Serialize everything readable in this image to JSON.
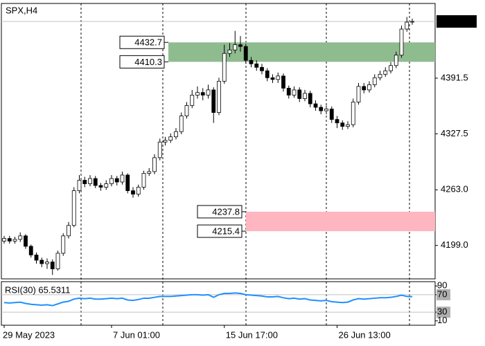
{
  "chart_data": {
    "type": "candlestick",
    "title": "SPX,H4",
    "categories": [
      "29 May 2023",
      null,
      null,
      null,
      null,
      null,
      null,
      null,
      null,
      null,
      null,
      null,
      null,
      null,
      null,
      null,
      null,
      null,
      null,
      null,
      "7 Jun 01:00",
      null,
      null,
      null,
      null,
      null,
      null,
      null,
      null,
      null,
      null,
      null,
      null,
      null,
      null,
      null,
      null,
      null,
      null,
      null,
      null,
      "15 Jun 17:00",
      null,
      null,
      null,
      null,
      null,
      null,
      null,
      null,
      null,
      null,
      null,
      null,
      null,
      null,
      null,
      null,
      null,
      null,
      null,
      null,
      "26 Jun 13:00",
      null,
      null,
      null,
      null,
      null,
      null,
      null,
      null,
      null,
      null,
      null,
      null,
      null,
      null
    ],
    "open": [
      4204,
      4207,
      4204,
      4206,
      4210,
      4198,
      4188,
      4182,
      4178,
      4180,
      4172,
      4190,
      4210,
      4222,
      4262,
      4274,
      4270,
      4276,
      4268,
      4266,
      4270,
      4276,
      4272,
      4280,
      4262,
      4258,
      4266,
      4282,
      4284,
      4300,
      4318,
      4320,
      4324,
      4330,
      4348,
      4360,
      4372,
      4375,
      4372,
      4378,
      4352,
      4388,
      4420,
      4424,
      4430,
      4428,
      4412,
      4408,
      4404,
      4400,
      4392,
      4390,
      4394,
      4380,
      4372,
      4378,
      4368,
      4374,
      4362,
      4358,
      4354,
      4356,
      4344,
      4340,
      4336,
      4338,
      4364,
      4382,
      4378,
      4384,
      4392,
      4396,
      4400,
      4406,
      4418,
      4448,
      4456
    ],
    "high": [
      4210,
      4210,
      4209,
      4214,
      4212,
      4200,
      4191,
      4185,
      4184,
      4183,
      4193,
      4213,
      4226,
      4266,
      4280,
      4278,
      4280,
      4279,
      4271,
      4274,
      4280,
      4279,
      4284,
      4282,
      4266,
      4269,
      4285,
      4288,
      4304,
      4322,
      4324,
      4328,
      4334,
      4352,
      4364,
      4378,
      4382,
      4380,
      4384,
      4381,
      4392,
      4430,
      4432,
      4446,
      4440,
      4431,
      4416,
      4412,
      4408,
      4403,
      4396,
      4398,
      4397,
      4383,
      4382,
      4381,
      4378,
      4377,
      4366,
      4361,
      4360,
      4359,
      4348,
      4343,
      4342,
      4368,
      4386,
      4386,
      4388,
      4396,
      4400,
      4404,
      4410,
      4422,
      4452,
      4462,
      4460
    ],
    "low": [
      4201,
      4201,
      4201,
      4203,
      4195,
      4185,
      4178,
      4174,
      4172,
      4165,
      4170,
      4187,
      4207,
      4220,
      4259,
      4266,
      4267,
      4265,
      4262,
      4263,
      4267,
      4268,
      4269,
      4259,
      4254,
      4255,
      4263,
      4279,
      4281,
      4297,
      4314,
      4317,
      4321,
      4327,
      4345,
      4357,
      4368,
      4366,
      4368,
      4340,
      4349,
      4385,
      4416,
      4420,
      4422,
      4408,
      4404,
      4400,
      4396,
      4388,
      4386,
      4386,
      4376,
      4368,
      4369,
      4364,
      4365,
      4358,
      4354,
      4350,
      4350,
      4340,
      4334,
      4332,
      4333,
      4335,
      4361,
      4374,
      4375,
      4381,
      4389,
      4393,
      4397,
      4403,
      4415,
      4445,
      4453
    ],
    "close": [
      4207,
      4204,
      4206,
      4210,
      4198,
      4188,
      4182,
      4178,
      4180,
      4172,
      4190,
      4210,
      4222,
      4262,
      4274,
      4270,
      4276,
      4268,
      4266,
      4270,
      4276,
      4272,
      4280,
      4262,
      4258,
      4266,
      4282,
      4284,
      4300,
      4318,
      4320,
      4324,
      4330,
      4348,
      4360,
      4372,
      4375,
      4372,
      4378,
      4352,
      4388,
      4420,
      4424,
      4430,
      4428,
      4412,
      4408,
      4404,
      4400,
      4392,
      4390,
      4394,
      4380,
      4372,
      4378,
      4368,
      4374,
      4362,
      4358,
      4354,
      4356,
      4344,
      4340,
      4336,
      4338,
      4364,
      4382,
      4378,
      4384,
      4392,
      4396,
      4400,
      4406,
      4418,
      4448,
      4456,
      4456.8
    ],
    "ylim": [
      4160.5,
      4477.5
    ],
    "yticks": [
      {
        "value": 4199,
        "label": "4199.0"
      },
      {
        "value": 4263,
        "label": "4263.0"
      },
      4327.5,
      4391.5
    ],
    "current_price": 4456.8,
    "zones": [
      {
        "high": 4432.7,
        "low": 4410.3,
        "color": "#8fbc8f"
      },
      {
        "high": 4237.8,
        "low": 4215.4,
        "color": "#ffb6c1"
      }
    ],
    "rsi": {
      "title": "RSI(30) 65.5311",
      "color": "#1e90ff",
      "ylim": [
        0,
        100
      ],
      "yticks": [
        90,
        70,
        30,
        10
      ],
      "levels": [
        70,
        30
      ],
      "values": [
        52,
        51,
        52,
        53,
        50,
        48,
        47,
        46,
        47,
        45,
        49,
        53,
        55,
        60,
        62,
        61,
        62,
        60,
        60,
        61,
        62,
        61,
        62,
        58,
        57,
        59,
        62,
        62,
        64,
        66,
        66,
        66,
        67,
        68,
        69,
        70,
        70,
        69,
        70,
        64,
        70,
        73,
        73,
        74,
        73,
        70,
        69,
        68,
        67,
        65,
        65,
        66,
        63,
        61,
        62,
        60,
        61,
        58,
        57,
        56,
        57,
        54,
        53,
        52,
        53,
        58,
        61,
        60,
        61,
        62,
        63,
        63,
        64,
        66,
        69,
        66,
        65.5311
      ]
    }
  }
}
